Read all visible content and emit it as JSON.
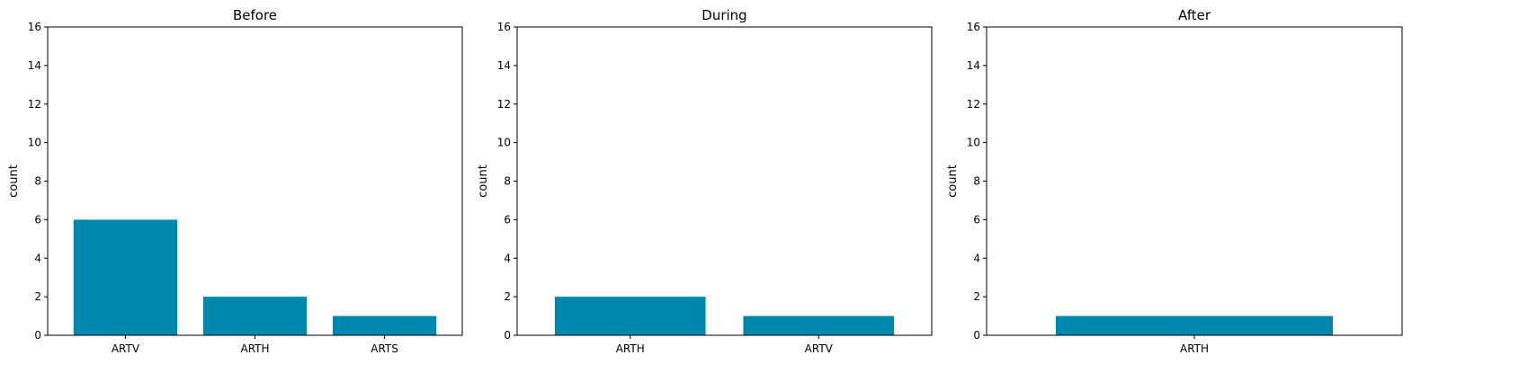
{
  "chart_data": [
    {
      "type": "bar",
      "title": "Before",
      "xlabel": "",
      "ylabel": "count",
      "categories": [
        "ARTV",
        "ARTH",
        "ARTS"
      ],
      "values": [
        6,
        2,
        1
      ],
      "ylim": [
        0,
        16
      ],
      "yticks": [
        0,
        2,
        4,
        6,
        8,
        10,
        12,
        14,
        16
      ],
      "grid": false
    },
    {
      "type": "bar",
      "title": "During",
      "xlabel": "",
      "ylabel": "count",
      "categories": [
        "ARTH",
        "ARTV"
      ],
      "values": [
        2,
        1
      ],
      "ylim": [
        0,
        16
      ],
      "yticks": [
        0,
        2,
        4,
        6,
        8,
        10,
        12,
        14,
        16
      ],
      "grid": false
    },
    {
      "type": "bar",
      "title": "After",
      "xlabel": "",
      "ylabel": "count",
      "categories": [
        "ARTH"
      ],
      "values": [
        1
      ],
      "ylim": [
        0,
        16
      ],
      "yticks": [
        0,
        2,
        4,
        6,
        8,
        10,
        12,
        14,
        16
      ],
      "grid": false
    }
  ],
  "colors": {
    "bar": "#0087ad",
    "axis": "#000000",
    "background": "#ffffff"
  }
}
